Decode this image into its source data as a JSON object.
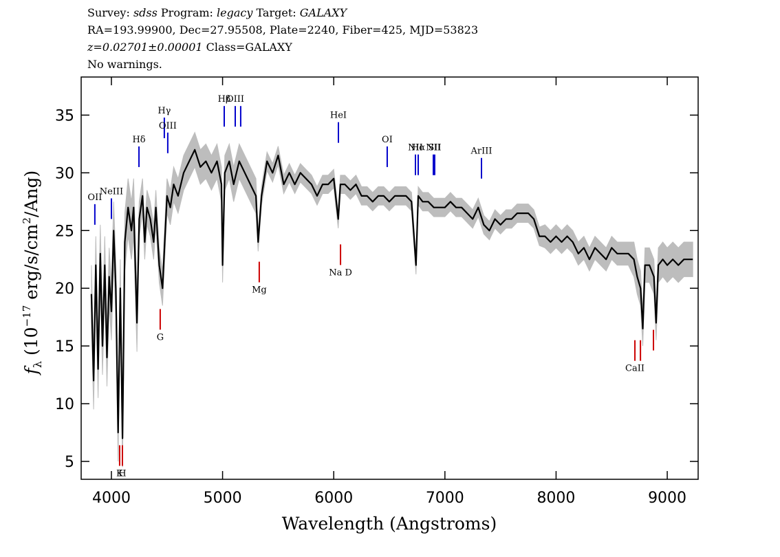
{
  "chart_data": {
    "type": "line",
    "header": [
      [
        {
          "text": "Survey: "
        },
        {
          "text": "sdss",
          "italic": true
        },
        {
          "text": " Program: "
        },
        {
          "text": "legacy",
          "italic": true
        },
        {
          "text": " Target: "
        },
        {
          "text": "GALAXY",
          "italic": true
        }
      ],
      [
        {
          "text": "RA=193.99900, Dec=27.95508, Plate=2240, Fiber=425, MJD=53823"
        }
      ],
      [
        {
          "text": "z=0.02701±0.00001",
          "italic": true
        },
        {
          "text": " Class=GALAXY"
        }
      ],
      [
        {
          "text": "No warnings."
        }
      ]
    ],
    "xlabel": "Wavelength (Angstroms)",
    "ylabel": {
      "symbol": "f",
      "sub": "λ",
      "pre": " (10",
      "exp1": "−17",
      "mid": " erg/s/cm",
      "exp2": "2",
      "post": "/Ang)"
    },
    "xlim": [
      3728,
      9278
    ],
    "ylim": [
      3.45,
      38.3
    ],
    "xticks": [
      4000,
      5000,
      6000,
      7000,
      8000,
      9000
    ],
    "yticks": [
      5,
      10,
      15,
      20,
      25,
      30,
      35
    ],
    "color": "#000000",
    "error_color": "#bdbdbd",
    "x": [
      3820,
      3840,
      3860,
      3880,
      3900,
      3920,
      3940,
      3960,
      3980,
      4000,
      4020,
      4040,
      4060,
      4080,
      4100,
      4120,
      4150,
      4180,
      4200,
      4230,
      4250,
      4280,
      4300,
      4320,
      4350,
      4380,
      4400,
      4430,
      4460,
      4480,
      4500,
      4530,
      4560,
      4600,
      4650,
      4700,
      4750,
      4800,
      4850,
      4900,
      4950,
      4990,
      5000,
      5020,
      5060,
      5100,
      5150,
      5200,
      5250,
      5300,
      5320,
      5350,
      5400,
      5450,
      5500,
      5550,
      5600,
      5650,
      5700,
      5750,
      5800,
      5850,
      5900,
      5950,
      6000,
      6040,
      6060,
      6100,
      6150,
      6200,
      6250,
      6300,
      6350,
      6400,
      6450,
      6500,
      6550,
      6600,
      6650,
      6700,
      6740,
      6760,
      6800,
      6850,
      6900,
      6950,
      7000,
      7050,
      7100,
      7150,
      7200,
      7250,
      7300,
      7350,
      7400,
      7450,
      7500,
      7550,
      7600,
      7650,
      7700,
      7750,
      7800,
      7850,
      7900,
      7950,
      8000,
      8050,
      8100,
      8150,
      8200,
      8250,
      8300,
      8350,
      8400,
      8450,
      8500,
      8550,
      8600,
      8650,
      8700,
      8730,
      8760,
      8780,
      8800,
      8840,
      8880,
      8900,
      8920,
      8960,
      9000,
      9050,
      9100,
      9150,
      9200,
      9230
    ],
    "values": [
      19.5,
      12,
      22,
      13,
      23,
      15,
      22,
      14,
      21,
      18,
      25,
      20,
      7.5,
      20,
      7,
      24,
      27,
      25,
      27,
      17,
      26,
      28,
      24,
      27,
      26,
      24,
      27,
      22,
      20,
      24,
      28,
      27,
      29,
      28,
      30,
      31,
      32,
      30.5,
      31,
      30,
      31,
      29,
      22,
      30,
      31,
      29,
      31,
      30,
      29,
      28,
      24,
      28,
      31,
      30,
      31.5,
      29,
      30,
      29,
      30,
      29.5,
      29,
      28,
      29,
      29,
      29.5,
      26,
      29,
      29,
      28.5,
      29,
      28,
      28,
      27.5,
      28,
      28,
      27.5,
      28,
      28,
      28,
      27.5,
      22,
      28,
      27.5,
      27.5,
      27,
      27,
      27,
      27.5,
      27,
      27,
      26.5,
      26,
      27,
      25.5,
      25,
      26,
      25.5,
      26,
      26,
      26.5,
      26.5,
      26.5,
      26,
      24.5,
      24.5,
      24,
      24.5,
      24,
      24.5,
      24,
      23,
      23.5,
      22.5,
      23.5,
      23,
      22.5,
      23.5,
      23,
      23,
      23,
      22.5,
      21,
      20,
      16.5,
      22,
      22,
      21,
      17,
      22,
      22.5,
      22,
      22.5,
      22,
      22.5,
      22.5,
      22.5
    ],
    "error": [
      2.5,
      2.5,
      2.5,
      2.5,
      2.5,
      2.5,
      2.5,
      2.5,
      2.5,
      2.5,
      2.5,
      2.5,
      2.5,
      2.5,
      2.5,
      2.5,
      2.5,
      2.5,
      2.5,
      2.5,
      1.5,
      1.5,
      1.5,
      1.5,
      1.5,
      1.5,
      1.5,
      1.5,
      1.5,
      1.5,
      1.5,
      1.5,
      1.5,
      1.5,
      1.5,
      1.5,
      1.5,
      1.5,
      1.5,
      1.5,
      1.5,
      1.5,
      1.5,
      1.5,
      1.5,
      1.5,
      1.5,
      1.5,
      1.5,
      1.5,
      0.8,
      0.8,
      0.8,
      0.8,
      0.8,
      0.8,
      0.8,
      0.8,
      0.8,
      0.8,
      0.8,
      0.8,
      0.8,
      0.8,
      0.8,
      0.8,
      0.8,
      0.8,
      0.8,
      0.8,
      0.8,
      0.8,
      0.8,
      0.8,
      0.8,
      0.8,
      0.8,
      0.8,
      0.8,
      0.8,
      0.8,
      0.8,
      0.8,
      0.8,
      0.8,
      0.8,
      0.8,
      0.8,
      0.8,
      0.8,
      0.8,
      0.8,
      0.8,
      0.8,
      0.8,
      0.8,
      0.8,
      0.8,
      0.8,
      0.8,
      0.8,
      0.8,
      0.8,
      0.8,
      1,
      1,
      1,
      1,
      1,
      1,
      1,
      1,
      1,
      1,
      1,
      1,
      1,
      1,
      1,
      1,
      1.5,
      1.5,
      1.5,
      1.5,
      1.5,
      1.5,
      1.5,
      1.5,
      1.5,
      1.5,
      1.5,
      1.5,
      1.5,
      1.5,
      1.5,
      1.5
    ],
    "emission_color": "#0000cc",
    "absorption_color": "#cc0000",
    "emission_lines": [
      {
        "label": "OII",
        "wavelength": 3851,
        "y": 25.5
      },
      {
        "label": "NeIII",
        "wavelength": 4000,
        "y": 26.0
      },
      {
        "label": "Hδ",
        "wavelength": 4248,
        "y": 30.5
      },
      {
        "label": "Hγ",
        "wavelength": 4476,
        "y": 33.0
      },
      {
        "label": "OIII",
        "wavelength": 4507,
        "y": 31.7
      },
      {
        "label": "Hβ",
        "wavelength": 5015,
        "y": 34.0
      },
      {
        "label": "OIII",
        "wavelength": 5114,
        "y": 34.0
      },
      {
        "wavelength": 5163,
        "y": 34.0
      },
      {
        "label": "HeI",
        "wavelength": 6042,
        "y": 32.6
      },
      {
        "label": "OI",
        "wavelength": 6481,
        "y": 30.5
      },
      {
        "label": "NII",
        "wavelength": 6735,
        "y": 29.8
      },
      {
        "label": "Hα",
        "wavelength": 6760,
        "y": 29.8
      },
      {
        "label": "NII",
        "wavelength": 6896,
        "y": 29.8
      },
      {
        "label": "SII",
        "wavelength": 6908,
        "y": 29.8
      },
      {
        "label": "ArIII",
        "wavelength": 7329,
        "y": 29.5
      }
    ],
    "absorption_lines": [
      {
        "label": "K",
        "wavelength": 4074,
        "y": 6.4
      },
      {
        "label": "H",
        "wavelength": 4099,
        "y": 6.4
      },
      {
        "label": "G",
        "wavelength": 4439,
        "y": 18.2
      },
      {
        "label": "Mg",
        "wavelength": 5330,
        "y": 22.3
      },
      {
        "label": "Na D",
        "wavelength": 6061,
        "y": 23.8
      },
      {
        "label": "CaII",
        "wavelength": 8709,
        "y": 15.5
      },
      {
        "wavelength": 8759,
        "y": 15.5
      },
      {
        "wavelength": 8876,
        "y": 16.4
      }
    ]
  }
}
